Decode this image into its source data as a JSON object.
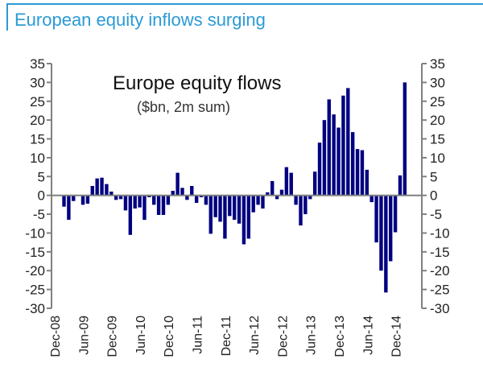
{
  "title": "European equity inflows surging",
  "colors": {
    "accent": "#2b9ad6",
    "bar": "#000080",
    "axis": "#808080"
  },
  "chart_data": {
    "type": "bar",
    "title": "Europe equity flows",
    "subtitle": "($bn, 2m sum)",
    "xlabel": "",
    "ylabel": "",
    "ylim": [
      -30,
      35
    ],
    "yticks": [
      35,
      30,
      25,
      20,
      15,
      10,
      5,
      0,
      -5,
      -10,
      -15,
      -20,
      -25,
      -30
    ],
    "ytick_labels": [
      "35",
      "30",
      "25",
      "20",
      "15",
      "10",
      "5",
      "0",
      "-5",
      "-10",
      "-15",
      "-20",
      "-25",
      "-30"
    ],
    "xtick_labels": [
      "Dec-08",
      "Jun-09",
      "Dec-09",
      "Jun-10",
      "Dec-10",
      "Jun-11",
      "Dec-11",
      "Jun-12",
      "Dec-12",
      "Jun-13",
      "Dec-13",
      "Jun-14",
      "Dec-14"
    ],
    "grid": false,
    "legend": "none",
    "dual_axis_mirror": true,
    "categories": [
      "Jan-09",
      "Feb-09",
      "Mar-09",
      "Apr-09",
      "May-09",
      "Jun-09",
      "Jul-09",
      "Aug-09",
      "Sep-09",
      "Oct-09",
      "Nov-09",
      "Dec-09",
      "Jan-10",
      "Feb-10",
      "Mar-10",
      "Apr-10",
      "May-10",
      "Jun-10",
      "Jul-10",
      "Aug-10",
      "Sep-10",
      "Oct-10",
      "Nov-10",
      "Dec-10",
      "Jan-11",
      "Feb-11",
      "Mar-11",
      "Apr-11",
      "May-11",
      "Jun-11",
      "Jul-11",
      "Aug-11",
      "Sep-11",
      "Oct-11",
      "Nov-11",
      "Dec-11",
      "Jan-12",
      "Feb-12",
      "Mar-12",
      "Apr-12",
      "May-12",
      "Jun-12",
      "Jul-12",
      "Aug-12",
      "Sep-12",
      "Oct-12",
      "Nov-12",
      "Dec-12",
      "Jan-13",
      "Feb-13",
      "Mar-13",
      "Apr-13",
      "May-13",
      "Jun-13",
      "Jul-13",
      "Aug-13",
      "Sep-13",
      "Oct-13",
      "Nov-13",
      "Dec-13",
      "Jan-14",
      "Feb-14",
      "Mar-14",
      "Apr-14",
      "May-14",
      "Jun-14",
      "Jul-14",
      "Aug-14",
      "Sep-14",
      "Oct-14",
      "Nov-14",
      "Dec-14",
      "Jan-15"
    ],
    "values": [
      -3,
      -6.5,
      -1.5,
      0,
      -2.5,
      -2.2,
      2.5,
      4.5,
      4.7,
      3,
      1,
      -1.2,
      -1,
      -4,
      -10.5,
      -3.5,
      -3.2,
      -6.5,
      -0.5,
      -2.5,
      -5.2,
      -5.2,
      -2.5,
      1.2,
      6,
      2,
      -1.2,
      2.5,
      -2,
      -0.5,
      -2.5,
      -10.2,
      -5.8,
      -7,
      -11.5,
      -5.5,
      -6.5,
      -7.5,
      -13,
      -11.5,
      -4.5,
      -2.5,
      -3.5,
      0.8,
      3.8,
      -1,
      1.5,
      7.5,
      6,
      -2.5,
      -8,
      -5,
      -1,
      6.3,
      14,
      20,
      25.5,
      21.5,
      18,
      26.5,
      28.5,
      16.8,
      12.3,
      12,
      6.8,
      -1.8,
      -12.5,
      -20,
      -25.8,
      -17.5,
      -9.8,
      5.3,
      30
    ]
  }
}
